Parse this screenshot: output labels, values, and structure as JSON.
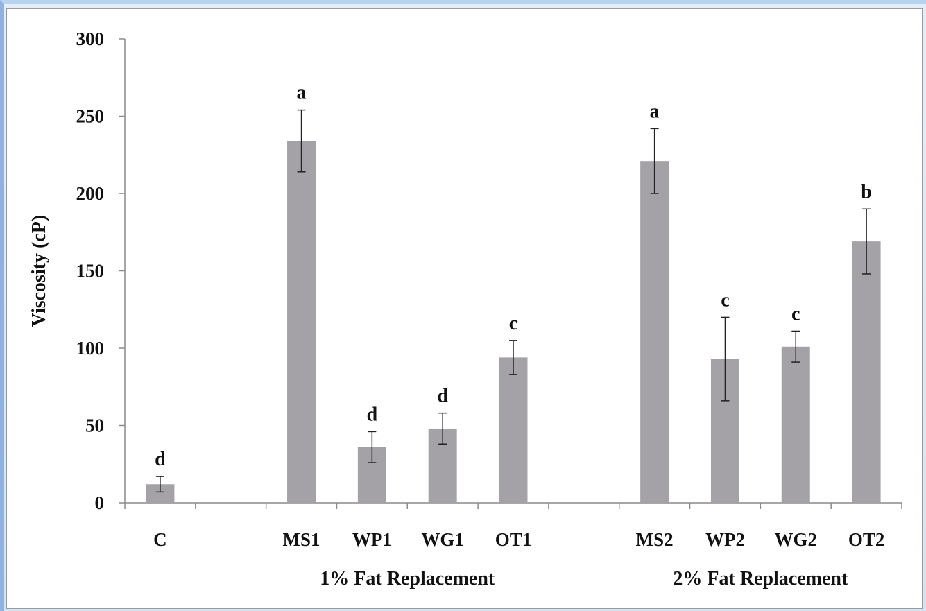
{
  "chart_data": {
    "type": "bar",
    "title": "",
    "xlabel": "",
    "ylabel": "Viscosity (cP)",
    "ylim": [
      0,
      300
    ],
    "yticks": [
      0,
      50,
      100,
      150,
      200,
      250,
      300
    ],
    "grid": false,
    "legend": "none",
    "bar_color": "#a4a2a6",
    "slots": [
      "C",
      "",
      "MS1",
      "WP1",
      "WG1",
      "OT1",
      "",
      "MS2",
      "WP2",
      "WG2",
      "OT2"
    ],
    "categories": [
      "C",
      "MS1",
      "WP1",
      "WG1",
      "OT1",
      "MS2",
      "WP2",
      "WG2",
      "OT2"
    ],
    "values": [
      12,
      234,
      36,
      48,
      94,
      221,
      93,
      101,
      169
    ],
    "errors": [
      5,
      20,
      10,
      10,
      11,
      21,
      27,
      10,
      21
    ],
    "significance": [
      "d",
      "a",
      "d",
      "d",
      "c",
      "a",
      "c",
      "c",
      "b"
    ],
    "groups": [
      {
        "label": "1% Fat Replacement",
        "categories": [
          "MS1",
          "WP1",
          "WG1",
          "OT1"
        ]
      },
      {
        "label": "2% Fat Replacement",
        "categories": [
          "MS2",
          "WP2",
          "WG2",
          "OT2"
        ]
      }
    ]
  }
}
